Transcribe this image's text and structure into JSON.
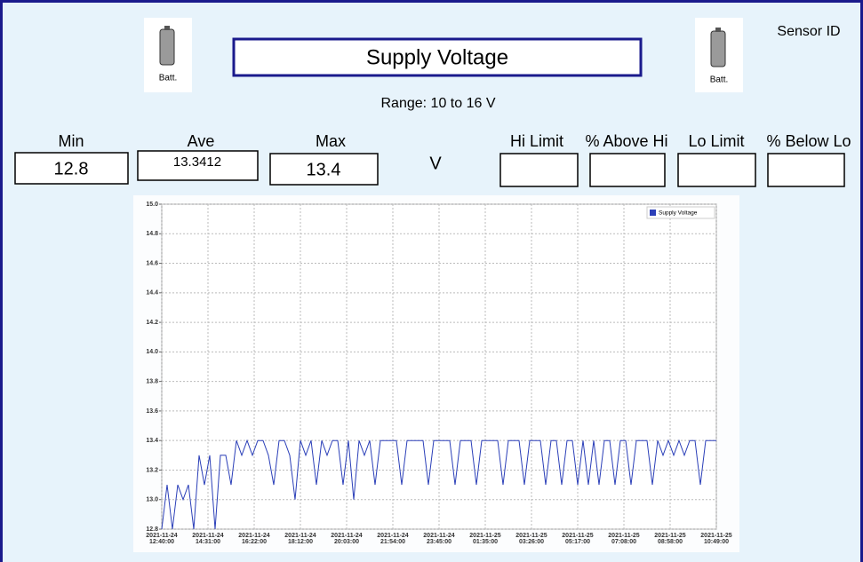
{
  "header": {
    "title": "Supply Voltage",
    "sensor_id_label": "Sensor ID",
    "range": "Range: 10 to 16 V",
    "battery_labels": [
      "Batt.",
      "Batt."
    ]
  },
  "stats": {
    "min": {
      "label": "Min",
      "value": 12.8
    },
    "ave": {
      "label": "Ave",
      "value": 13.3412
    },
    "max": {
      "label": "Max",
      "value": 13.4
    },
    "unit": "V"
  },
  "limits": [
    {
      "label": "Hi Limit"
    },
    {
      "label": "% Above Hi"
    },
    {
      "label": "Lo Limit"
    },
    {
      "label": "% Below Lo"
    }
  ],
  "chart_data": {
    "type": "line",
    "xtick_labels": [
      [
        "2021-11-24",
        "12:40:00"
      ],
      [
        "2021-11-24",
        "14:31:00"
      ],
      [
        "2021-11-24",
        "16:22:00"
      ],
      [
        "2021-11-24",
        "18:12:00"
      ],
      [
        "2021-11-24",
        "20:03:00"
      ],
      [
        "2021-11-24",
        "21:54:00"
      ],
      [
        "2021-11-24",
        "23:45:00"
      ],
      [
        "2021-11-25",
        "01:35:00"
      ],
      [
        "2021-11-25",
        "03:26:00"
      ],
      [
        "2021-11-25",
        "05:17:00"
      ],
      [
        "2021-11-25",
        "07:08:00"
      ],
      [
        "2021-11-25",
        "08:58:00"
      ],
      [
        "2021-11-25",
        "10:49:00"
      ]
    ],
    "ylim": [
      12.8,
      15.0
    ],
    "yticks": [
      12.8,
      {
        "value": 13,
        "label": "13.0"
      },
      13.2,
      13.4,
      13.6,
      13.8,
      {
        "value": 14,
        "label": "14.0"
      },
      14.2,
      14.4,
      14.6,
      14.8,
      {
        "value": 15,
        "label": "15.0"
      }
    ],
    "grid": true,
    "legend": "top-right",
    "series": [
      {
        "name": "Supply Voltage",
        "color": "#2b3fb8",
        "values": [
          12.8,
          13.1,
          12.8,
          13.1,
          13.0,
          13.1,
          12.8,
          13.3,
          13.1,
          13.3,
          12.8,
          13.3,
          13.3,
          13.1,
          13.4,
          13.3,
          13.4,
          13.3,
          13.4,
          13.4,
          13.3,
          13.1,
          13.4,
          13.4,
          13.3,
          13.0,
          13.4,
          13.3,
          13.4,
          13.1,
          13.4,
          13.3,
          13.4,
          13.4,
          13.1,
          13.4,
          13.0,
          13.4,
          13.3,
          13.4,
          13.1,
          13.4,
          13.4,
          13.4,
          13.4,
          13.1,
          13.4,
          13.4,
          13.4,
          13.4,
          13.1,
          13.4,
          13.4,
          13.4,
          13.4,
          13.1,
          13.4,
          13.4,
          13.4,
          13.1,
          13.4,
          13.4,
          13.4,
          13.4,
          13.1,
          13.4,
          13.4,
          13.4,
          13.1,
          13.4,
          13.4,
          13.4,
          13.1,
          13.4,
          13.4,
          13.1,
          13.4,
          13.4,
          13.1,
          13.4,
          13.1,
          13.4,
          13.1,
          13.4,
          13.4,
          13.1,
          13.4,
          13.4,
          13.1,
          13.4,
          13.4,
          13.4,
          13.1,
          13.4,
          13.3,
          13.4,
          13.3,
          13.4,
          13.3,
          13.4,
          13.4,
          13.1,
          13.4,
          13.4,
          13.4
        ]
      }
    ]
  }
}
